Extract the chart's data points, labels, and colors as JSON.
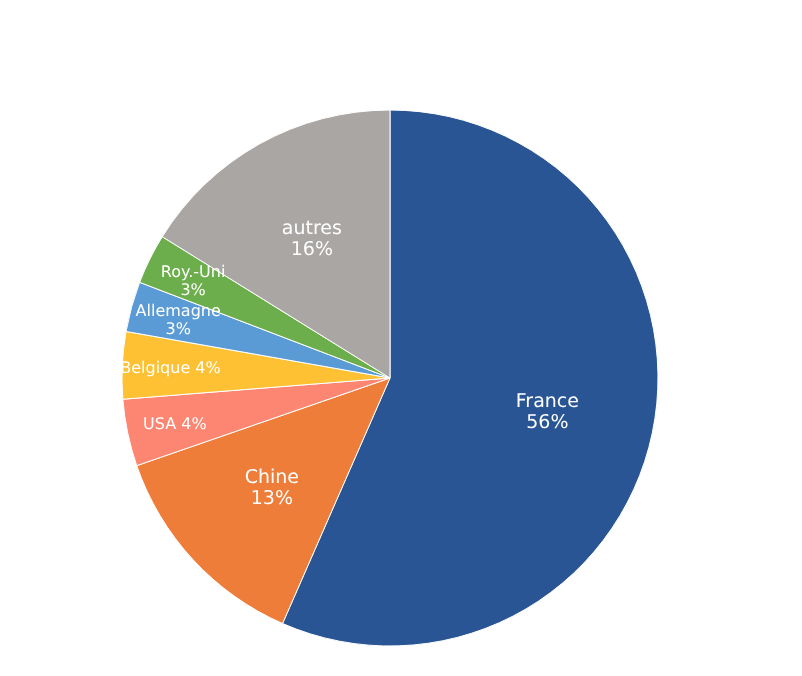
{
  "chart_data": {
    "type": "pie",
    "categories": [
      "France",
      "Chine",
      "USA",
      "Belgique",
      "Allemagne",
      "Roy.-Uni",
      "autres"
    ],
    "values": [
      56,
      13,
      4,
      4,
      3,
      3,
      16
    ],
    "value_labels": [
      "56%",
      "13%",
      "4%",
      "4%",
      "3%",
      "3%",
      "16%"
    ],
    "colors": [
      "#2a5595",
      "#ef7d3a",
      "#fc8671",
      "#fdc133",
      "#5b9bd5",
      "#6cae4c",
      "#aaa6a4"
    ]
  }
}
